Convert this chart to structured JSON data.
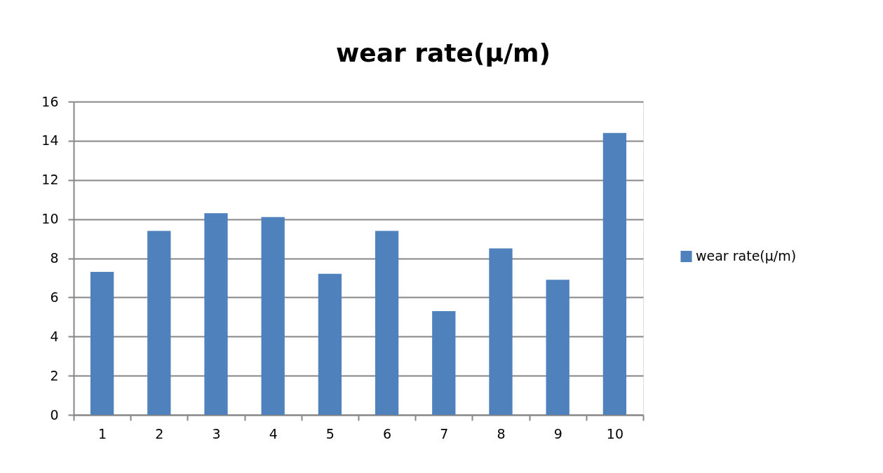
{
  "chart_data": {
    "type": "bar",
    "title": "wear rate(μ/m)",
    "categories": [
      "1",
      "2",
      "3",
      "4",
      "5",
      "6",
      "7",
      "8",
      "9",
      "10"
    ],
    "series": [
      {
        "name": "wear rate(μ/m)",
        "color": "#4f81bd",
        "values": [
          7.3,
          9.4,
          10.3,
          10.1,
          7.2,
          9.4,
          5.3,
          8.5,
          6.9,
          14.4
        ]
      }
    ],
    "ylim": [
      0,
      16
    ],
    "yticks": [
      0,
      2,
      4,
      6,
      8,
      10,
      12,
      14,
      16
    ],
    "grid": "y",
    "legend": "right"
  }
}
